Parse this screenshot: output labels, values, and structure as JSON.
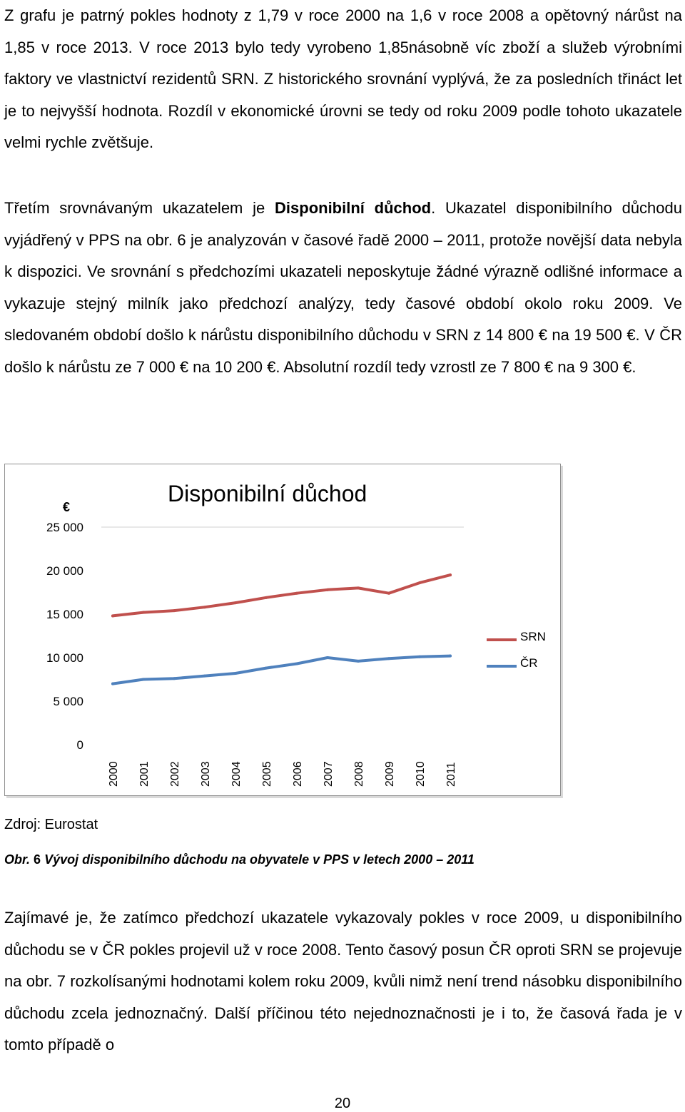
{
  "paragraph1": "Z grafu je patrný pokles hodnoty z 1,79 v roce 2000 na 1,6 v roce 2008 a opětovný nárůst na 1,85 v roce 2013. V roce 2013 bylo tedy vyrobeno 1,85násobně víc zboží a služeb výrobními faktory ve vlastnictví rezidentů SRN. Z historického srovnání vyplývá, že za posledních třináct let je to nejvyšší hodnota. Rozdíl v ekonomické úrovni se tedy od roku 2009 podle tohoto ukazatele velmi rychle zvětšuje.",
  "paragraph2": {
    "before": "Třetím srovnávaným ukazatelem je ",
    "bold": "Disponibilní důchod",
    "after": ". Ukazatel disponibilního důchodu vyjádřený v PPS na obr. 6 je analyzován v časové řadě 2000 – 2011, protože novější data nebyla k dispozici. Ve srovnání s předchozími ukazateli neposkytuje žádné výrazně odlišné informace a vykazuje stejný milník jako předchozí analýzy, tedy časové období okolo roku 2009. Ve sledovaném období došlo k nárůstu disponibilního důchodu v SRN z 14 800 € na 19 500 €. V ČR došlo k nárůstu ze 7 000 € na 10 200 €. Absolutní rozdíl tedy vzrostl ze 7 800 € na 9 300 €."
  },
  "chart_data": {
    "type": "line",
    "title": "Disponibilní důchod",
    "ylabel": "€",
    "ylim": [
      0,
      25000
    ],
    "yticks": [
      0,
      5000,
      10000,
      15000,
      20000,
      25000
    ],
    "ytick_labels": [
      "0",
      "5 000",
      "10 000",
      "15 000",
      "20 000",
      "25 000"
    ],
    "categories": [
      "2000",
      "2001",
      "2002",
      "2003",
      "2004",
      "2005",
      "2006",
      "2007",
      "2008",
      "2009",
      "2010",
      "2011"
    ],
    "series": [
      {
        "name": "SRN",
        "color": "#c0504d",
        "values": [
          14800,
          15200,
          15400,
          15800,
          16300,
          16900,
          17400,
          17800,
          18000,
          17400,
          18600,
          19500
        ]
      },
      {
        "name": "ČR",
        "color": "#4f81bd",
        "values": [
          7000,
          7500,
          7600,
          7900,
          8200,
          8800,
          9300,
          10000,
          9600,
          9900,
          10100,
          10200
        ]
      }
    ],
    "grid": false,
    "legend": "right"
  },
  "source": "Zdroj: Eurostat",
  "caption": {
    "prefix": "Obr.",
    "number": "6",
    "text": "Vývoj disponibilního důchodu na obyvatele v PPS v letech 2000 – 2011"
  },
  "paragraph3": "Zajímavé je, že zatímco předchozí ukazatele vykazovaly pokles v roce 2009, u disponibilního důchodu se v ČR pokles projevil už v roce 2008. Tento časový posun ČR oproti SRN se projevuje na obr. 7 rozkolísanými hodnotami kolem roku 2009, kvůli nimž není trend násobku disponibilního důchodu zcela jednoznačný. Další příčinou této nejednoznačnosti je i to, že časová řada je v tomto případě o",
  "page_number": "20"
}
